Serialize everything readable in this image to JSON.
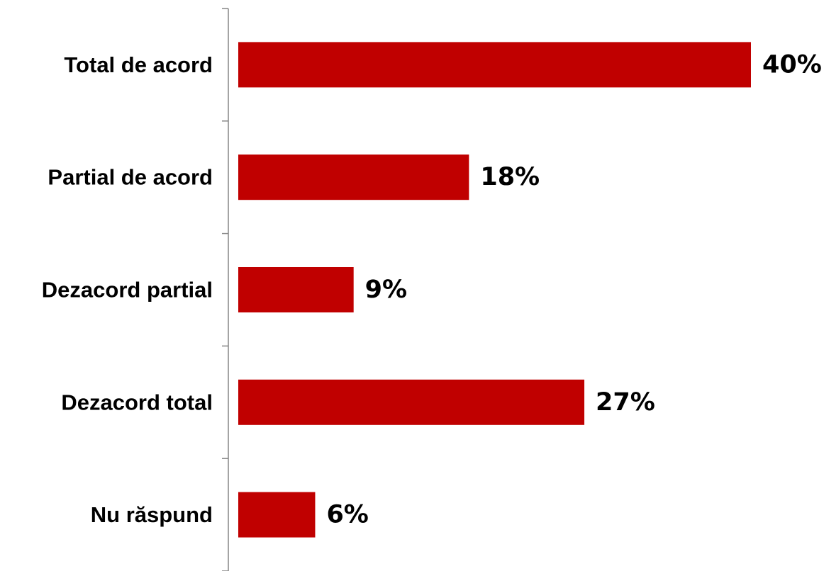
{
  "chart_data": {
    "type": "bar",
    "orientation": "horizontal",
    "categories": [
      "Total de acord",
      "Partial de acord",
      "Dezacord partial",
      "Dezacord total",
      "Nu răspund"
    ],
    "values": [
      40,
      18,
      9,
      27,
      6
    ],
    "value_labels": [
      "40%",
      "18%",
      "9%",
      "27%",
      "6%"
    ],
    "unit": "%",
    "title": "",
    "xlabel": "",
    "ylabel": "",
    "xlim": [
      0,
      40
    ],
    "grid": false,
    "legend": "none",
    "bar_color": "#C00000",
    "axis_color": "#868686"
  }
}
